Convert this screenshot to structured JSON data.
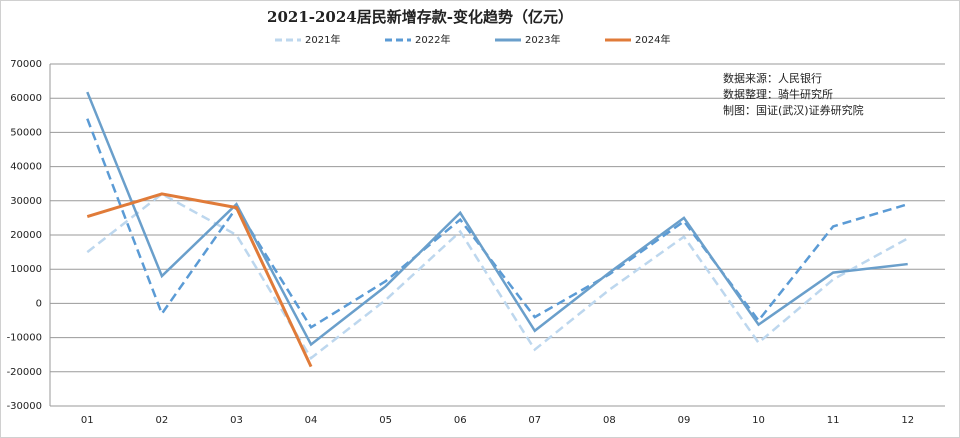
{
  "chart_data": {
    "type": "line",
    "title": "2021-2024居民新增存款-变化趋势（亿元）",
    "categories": [
      "01",
      "02",
      "03",
      "04",
      "05",
      "06",
      "07",
      "08",
      "09",
      "10",
      "11",
      "12"
    ],
    "series": [
      {
        "name": "2021年",
        "color": "#bdd7ee",
        "style": "dashed",
        "values": [
          15000,
          32000,
          20000,
          -16000,
          1000,
          21000,
          -13500,
          4000,
          19500,
          -11500,
          7000,
          19000
        ]
      },
      {
        "name": "2022年",
        "color": "#5b9bd5",
        "style": "dashed",
        "values": [
          54000,
          -3000,
          28000,
          -7000,
          6500,
          24500,
          -4000,
          8500,
          24000,
          -5000,
          22500,
          29000
        ]
      },
      {
        "name": "2023年",
        "color": "#6a9fcb",
        "style": "solid",
        "values": [
          61800,
          8000,
          29000,
          -12000,
          5000,
          26500,
          -8000,
          9000,
          25000,
          -6200,
          9000,
          11500
        ]
      },
      {
        "name": "2024年",
        "color": "#e07b39",
        "style": "solid",
        "values": [
          25400,
          32000,
          28000,
          -18500,
          null,
          null,
          null,
          null,
          null,
          null,
          null,
          null
        ]
      }
    ],
    "ylim": [
      -30000,
      70000
    ],
    "yticks": [
      -30000,
      -20000,
      -10000,
      0,
      10000,
      20000,
      30000,
      40000,
      50000,
      60000,
      70000
    ],
    "grid": true,
    "annotations": [
      "数据来源：人民银行",
      "数据整理：骑牛研究所",
      "制图：国证(武汉)证券研究院"
    ]
  }
}
